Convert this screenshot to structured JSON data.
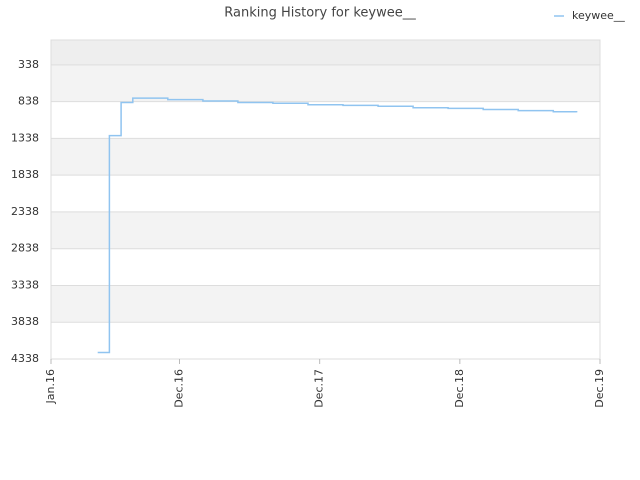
{
  "chart_data": {
    "type": "line",
    "title": "Ranking History for keywee__",
    "x": [
      "2016-05",
      "2016-06",
      "2016-07",
      "2016-08",
      "2016-11",
      "2017-02",
      "2017-05",
      "2017-08",
      "2017-11",
      "2018-02",
      "2018-05",
      "2018-08",
      "2018-11",
      "2019-02",
      "2019-05",
      "2019-08",
      "2019-10"
    ],
    "series": [
      {
        "name": "keywee__",
        "color": "#90c4f0",
        "values": [
          4250,
          1300,
          850,
          790,
          810,
          830,
          850,
          860,
          880,
          890,
          900,
          920,
          930,
          945,
          960,
          975,
          985
        ]
      }
    ],
    "xlim": [
      "2016-01",
      "2019-12"
    ],
    "xticks": [
      {
        "value": "2016-01",
        "label": "Jan.16"
      },
      {
        "value": "2016-12",
        "label": "Dec.16"
      },
      {
        "value": "2017-12",
        "label": "Dec.17"
      },
      {
        "value": "2018-12",
        "label": "Dec.18"
      },
      {
        "value": "2019-12",
        "label": "Dec.19"
      }
    ],
    "ylim": [
      4338,
      0
    ],
    "yticks": [
      338,
      838,
      1338,
      1838,
      2338,
      2838,
      3338,
      3838,
      4338
    ],
    "grid": true,
    "legend": "top-right"
  }
}
